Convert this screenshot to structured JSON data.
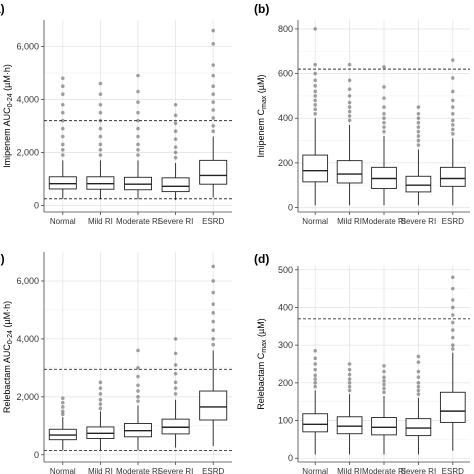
{
  "chart_data": [
    {
      "panel": "a)",
      "type": "box",
      "ylabel": "Imipenem AUC0-24 (µM·h)",
      "ylabel_main": "Imipenem AUC",
      "ylabel_sub": "0-24",
      "ylabel_tail": " (µM·h)",
      "yticks": [
        0,
        2000,
        4000,
        6000
      ],
      "ytick_labels": [
        "0",
        "2,000",
        "4,000",
        "6,000"
      ],
      "ylim": [
        -250,
        7000
      ],
      "reference_lines": [
        3200,
        250
      ],
      "categories": [
        "Normal",
        "Mild RI",
        "Moderate RI",
        "Severe RI",
        "ESRD"
      ],
      "boxes": [
        {
          "whisker_low": 250,
          "q1": 620,
          "median": 820,
          "q3": 1080,
          "whisker_high": 1700,
          "outliers": [
            1900,
            2100,
            2300,
            2600,
            2900,
            3200,
            3500,
            3800,
            4200,
            4500,
            4800
          ]
        },
        {
          "whisker_low": 250,
          "q1": 610,
          "median": 820,
          "q3": 1080,
          "whisker_high": 1700,
          "outliers": [
            1900,
            2100,
            2300,
            2600,
            2900,
            3200,
            3500,
            3800,
            4200,
            4600
          ]
        },
        {
          "whisker_low": 230,
          "q1": 590,
          "median": 800,
          "q3": 1060,
          "whisker_high": 1700,
          "outliers": [
            1900,
            2100,
            2300,
            2600,
            2900,
            3200,
            3500,
            3900,
            4300,
            4900
          ]
        },
        {
          "whisker_low": 200,
          "q1": 520,
          "median": 720,
          "q3": 1040,
          "whisker_high": 1600,
          "outliers": [
            1800,
            2000,
            2200,
            2500,
            2800,
            3100,
            3400,
            3800
          ]
        },
        {
          "whisker_low": 300,
          "q1": 800,
          "median": 1130,
          "q3": 1700,
          "whisker_high": 2600,
          "outliers": [
            2800,
            3000,
            3300,
            3600,
            3900,
            4200,
            4500,
            4900,
            5300,
            6100,
            6600
          ]
        }
      ]
    },
    {
      "panel": "(b)",
      "type": "box",
      "ylabel": "Imipenem Cmax (µM)",
      "ylabel_main": "Imipenem C",
      "ylabel_sub": "max",
      "ylabel_tail": " (µM)",
      "yticks": [
        0,
        200,
        400,
        600,
        800
      ],
      "ytick_labels": [
        "0",
        "200",
        "400",
        "600",
        "800"
      ],
      "ylim": [
        -20,
        840
      ],
      "reference_lines": [
        620
      ],
      "categories": [
        "Normal",
        "Mild RI",
        "Moderate RI",
        "Severe RI",
        "ESRD"
      ],
      "boxes": [
        {
          "whisker_low": 10,
          "q1": 115,
          "median": 165,
          "q3": 235,
          "whisker_high": 400,
          "outliers": [
            420,
            440,
            460,
            480,
            500,
            520,
            545,
            570,
            600,
            640,
            800
          ]
        },
        {
          "whisker_low": 10,
          "q1": 110,
          "median": 150,
          "q3": 210,
          "whisker_high": 370,
          "outliers": [
            390,
            410,
            430,
            450,
            470,
            500,
            530,
            570,
            640
          ]
        },
        {
          "whisker_low": 10,
          "q1": 85,
          "median": 130,
          "q3": 180,
          "whisker_high": 320,
          "outliers": [
            340,
            360,
            380,
            400,
            420,
            450,
            490,
            540,
            630
          ]
        },
        {
          "whisker_low": 10,
          "q1": 70,
          "median": 100,
          "q3": 140,
          "whisker_high": 260,
          "outliers": [
            280,
            300,
            320,
            340,
            360,
            380,
            400,
            420,
            450
          ]
        },
        {
          "whisker_low": 10,
          "q1": 95,
          "median": 130,
          "q3": 180,
          "whisker_high": 310,
          "outliers": [
            330,
            350,
            370,
            390,
            420,
            450,
            480,
            520,
            580,
            660
          ]
        }
      ]
    },
    {
      "panel": "c)",
      "type": "box",
      "ylabel": "Relebactam AUC0-24 (µM·h)",
      "ylabel_main": "Relebactam AUC",
      "ylabel_sub": "0-24",
      "ylabel_tail": " (µM·h)",
      "yticks": [
        0,
        2000,
        4000,
        6000
      ],
      "ytick_labels": [
        "0",
        "2,000",
        "4,000",
        "6,000"
      ],
      "ylim": [
        -250,
        7000
      ],
      "reference_lines": [
        2950,
        150
      ],
      "categories": [
        "Normal",
        "Mild RI",
        "Moderate RI",
        "Severe RI",
        "ESRD"
      ],
      "boxes": [
        {
          "whisker_low": 150,
          "q1": 520,
          "median": 680,
          "q3": 880,
          "whisker_high": 1300,
          "outliers": [
            1400,
            1500,
            1650,
            1800,
            1950
          ]
        },
        {
          "whisker_low": 150,
          "q1": 560,
          "median": 740,
          "q3": 960,
          "whisker_high": 1500,
          "outliers": [
            1600,
            1750,
            1900,
            2100,
            2300,
            2500
          ]
        },
        {
          "whisker_low": 150,
          "q1": 620,
          "median": 830,
          "q3": 1080,
          "whisker_high": 1700,
          "outliers": [
            1850,
            2000,
            2200,
            2400,
            2700,
            3000,
            3600
          ]
        },
        {
          "whisker_low": 250,
          "q1": 720,
          "median": 950,
          "q3": 1230,
          "whisker_high": 1900,
          "outliers": [
            2100,
            2300,
            2500,
            2800,
            3100,
            3500,
            4000
          ]
        },
        {
          "whisker_low": 300,
          "q1": 1200,
          "median": 1650,
          "q3": 2200,
          "whisker_high": 3600,
          "outliers": [
            3800,
            4000,
            4300,
            4600,
            4900,
            5200,
            5600,
            6000,
            6500
          ]
        }
      ]
    },
    {
      "panel": "(d)",
      "type": "box",
      "ylabel": "Relebactam Cmax (µM)",
      "ylabel_main": "Relebactam C",
      "ylabel_sub": "max",
      "ylabel_tail": " (µM)",
      "yticks": [
        0,
        100,
        200,
        300,
        400,
        500
      ],
      "ytick_labels": [
        "0",
        "100",
        "200",
        "300",
        "400",
        "500"
      ],
      "ylim": [
        -10,
        510
      ],
      "reference_lines": [
        370
      ],
      "categories": [
        "Normal",
        "Mild RI",
        "Moderate RI",
        "Severe RI",
        "ESRD"
      ],
      "boxes": [
        {
          "whisker_low": 10,
          "q1": 70,
          "median": 90,
          "q3": 118,
          "whisker_high": 180,
          "outliers": [
            190,
            200,
            210,
            220,
            235,
            250,
            265,
            285
          ]
        },
        {
          "whisker_low": 10,
          "q1": 65,
          "median": 85,
          "q3": 110,
          "whisker_high": 170,
          "outliers": [
            180,
            190,
            200,
            210,
            222,
            235,
            250
          ]
        },
        {
          "whisker_low": 10,
          "q1": 62,
          "median": 82,
          "q3": 108,
          "whisker_high": 165,
          "outliers": [
            175,
            185,
            195,
            205,
            215,
            230,
            245
          ]
        },
        {
          "whisker_low": 10,
          "q1": 60,
          "median": 80,
          "q3": 105,
          "whisker_high": 160,
          "outliers": [
            170,
            180,
            190,
            200,
            215,
            230,
            255,
            270
          ]
        },
        {
          "whisker_low": 20,
          "q1": 95,
          "median": 125,
          "q3": 175,
          "whisker_high": 280,
          "outliers": [
            290,
            300,
            320,
            340,
            360,
            380,
            400,
            420,
            450,
            480
          ]
        }
      ]
    }
  ]
}
